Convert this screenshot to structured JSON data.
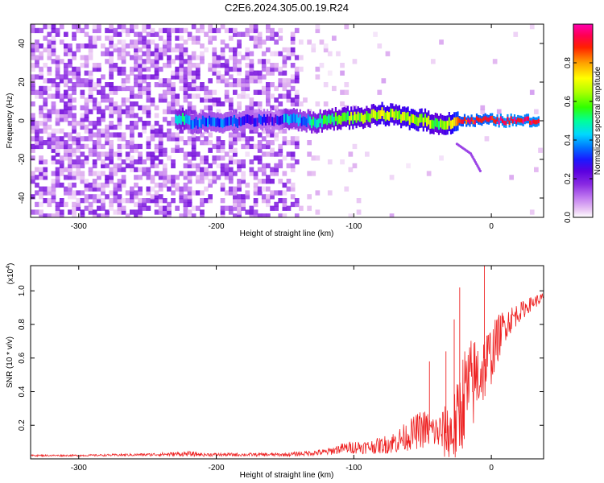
{
  "chart_data": [
    {
      "type": "heatmap",
      "title": "C2E6.2024.305.00.19.R24",
      "xlabel": "Height of straight line (km)",
      "ylabel": "Frequency (Hz)",
      "xlim": [
        -335,
        38
      ],
      "ylim": [
        -50,
        50
      ],
      "xticks": [
        -300,
        -200,
        -100,
        0
      ],
      "yticks": [
        -40,
        -20,
        0,
        20,
        40
      ],
      "colorbar": {
        "label": "Normalized spectral amplitude",
        "range": [
          0,
          1
        ],
        "ticks": [
          "0.0",
          "0.2",
          "0.4",
          "0.6",
          "0.8"
        ],
        "colormap": [
          "#ffffff",
          "#e2b4f0",
          "#c27cf0",
          "#8a2be2",
          "#6a00d8",
          "#1a00ff",
          "#0060ff",
          "#00d0ff",
          "#00ff90",
          "#40ff00",
          "#c0ff00",
          "#ffff00",
          "#ffa000",
          "#ff2000",
          "#ff0040",
          "#ff00a0"
        ]
      },
      "signal_track": [
        {
          "x": -230,
          "freq": 0.0,
          "amp": 0.45
        },
        {
          "x": -225,
          "freq": 1.0,
          "amp": 0.55
        },
        {
          "x": -220,
          "freq": -1.0,
          "amp": 0.4
        },
        {
          "x": -155,
          "freq": 0.5,
          "amp": 0.3
        },
        {
          "x": -150,
          "freq": 1.0,
          "amp": 0.45
        },
        {
          "x": -135,
          "freq": 0.0,
          "amp": 0.4
        },
        {
          "x": -130,
          "freq": -1.0,
          "amp": 0.5
        },
        {
          "x": -120,
          "freq": 0.5,
          "amp": 0.55
        },
        {
          "x": -110,
          "freq": 1.5,
          "amp": 0.6
        },
        {
          "x": -100,
          "freq": 1.5,
          "amp": 0.65
        },
        {
          "x": -90,
          "freq": 2.0,
          "amp": 0.6
        },
        {
          "x": -80,
          "freq": 3.5,
          "amp": 0.7
        },
        {
          "x": -70,
          "freq": 2.5,
          "amp": 0.65
        },
        {
          "x": -60,
          "freq": 1.0,
          "amp": 0.7
        },
        {
          "x": -50,
          "freq": 0.5,
          "amp": 0.68
        },
        {
          "x": -40,
          "freq": -2.0,
          "amp": 0.6
        },
        {
          "x": -30,
          "freq": -1.0,
          "amp": 0.7
        },
        {
          "x": -25,
          "freq": 0.0,
          "amp": 0.85
        },
        {
          "x": -15,
          "freq": 0.0,
          "amp": 0.9
        },
        {
          "x": -5,
          "freq": 0.5,
          "amp": 0.88
        },
        {
          "x": 5,
          "freq": 0.0,
          "amp": 0.95
        },
        {
          "x": 15,
          "freq": 0.0,
          "amp": 0.95
        },
        {
          "x": 25,
          "freq": 0.0,
          "amp": 0.93
        },
        {
          "x": 35,
          "freq": 0.0,
          "amp": 0.95
        }
      ],
      "tail_track": [
        {
          "x": -25,
          "freq": -12
        },
        {
          "x": -15,
          "freq": -17
        },
        {
          "x": -8,
          "freq": -26
        }
      ]
    },
    {
      "type": "line",
      "xlabel": "Height of straight line (km)",
      "ylabel": "SNR (10 * v/v)",
      "multiplier": "(x10",
      "multiplier_exp": "4",
      "multiplier_close": ")",
      "xlim": [
        -335,
        38
      ],
      "ylim": [
        0,
        1.15
      ],
      "xticks": [
        -300,
        -200,
        -100,
        0
      ],
      "yticks": [
        "0.2",
        "0.4",
        "0.6",
        "0.8",
        "1.0"
      ],
      "color": "#ee2222",
      "series": [
        {
          "x": [
            -335,
            -300,
            -250,
            -220,
            -210,
            -150,
            -120,
            -110,
            -100,
            -90,
            -80,
            -70,
            -60,
            -50,
            -40,
            -30,
            -25,
            -20,
            -15,
            -10,
            -5,
            0,
            5,
            10,
            20,
            30,
            38
          ],
          "mean": [
            0.02,
            0.02,
            0.025,
            0.03,
            0.025,
            0.025,
            0.04,
            0.06,
            0.07,
            0.07,
            0.08,
            0.1,
            0.14,
            0.18,
            0.16,
            0.15,
            0.2,
            0.38,
            0.42,
            0.5,
            0.55,
            0.62,
            0.72,
            0.8,
            0.87,
            0.93,
            0.96
          ],
          "spread": [
            0.005,
            0.005,
            0.008,
            0.015,
            0.01,
            0.01,
            0.02,
            0.03,
            0.04,
            0.04,
            0.05,
            0.07,
            0.09,
            0.12,
            0.1,
            0.2,
            0.25,
            0.3,
            0.3,
            0.25,
            0.22,
            0.18,
            0.14,
            0.1,
            0.06,
            0.04,
            0.03
          ]
        }
      ],
      "peaks": [
        {
          "x": -45,
          "y": 0.58
        },
        {
          "x": -33,
          "y": 0.64
        },
        {
          "x": -27,
          "y": 0.83
        },
        {
          "x": -23,
          "y": 1.02
        },
        {
          "x": -5,
          "y": 1.15
        }
      ]
    }
  ]
}
